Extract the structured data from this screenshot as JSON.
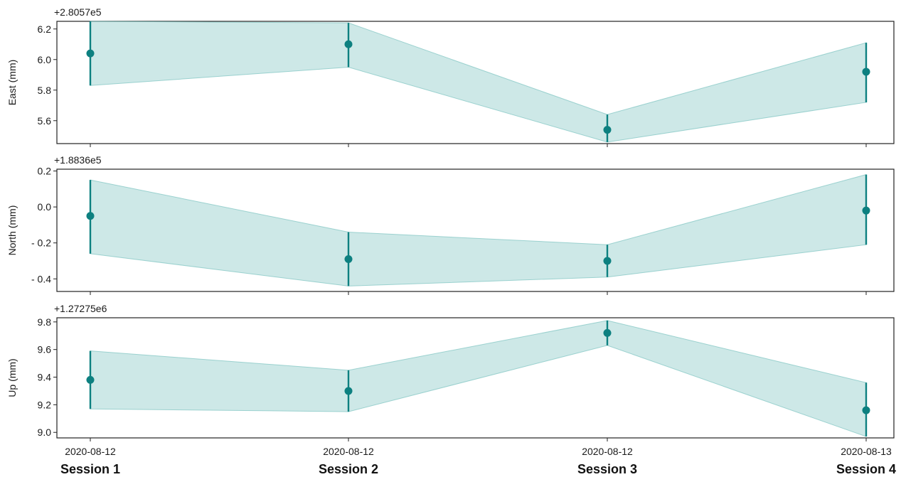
{
  "chart_data": {
    "type": "line",
    "x_dates": [
      "2020-08-12",
      "2020-08-12",
      "2020-08-12",
      "2020-08-13"
    ],
    "x_sessions": [
      "Session 1",
      "Session 2",
      "Session 3",
      "Session 4"
    ],
    "colors": {
      "series": "#0d8080",
      "band": "#7cc3c0"
    },
    "grid": false,
    "panels": [
      {
        "ylabel": "East (mm)",
        "offset": "+2.8057e5",
        "ylim": [
          5.45,
          6.25
        ],
        "yticks": [
          5.6,
          5.8,
          6.0,
          6.2
        ],
        "ytick_labels": [
          "5.6",
          "5.8",
          "6.0",
          "6.2"
        ],
        "values": [
          6.04,
          6.1,
          5.54,
          5.92
        ],
        "upper": [
          6.25,
          6.24,
          5.64,
          6.11
        ],
        "lower": [
          5.83,
          5.95,
          5.46,
          5.72
        ]
      },
      {
        "ylabel": "North (mm)",
        "offset": "+1.8836e5",
        "ylim": [
          -0.47,
          0.21
        ],
        "yticks": [
          -0.4,
          -0.2,
          0.0,
          0.2
        ],
        "ytick_labels": [
          "- 0.4",
          "- 0.2",
          "0.0",
          "0.2"
        ],
        "values": [
          -0.05,
          -0.29,
          -0.3,
          -0.02
        ],
        "upper": [
          0.15,
          -0.14,
          -0.21,
          0.18
        ],
        "lower": [
          -0.26,
          -0.44,
          -0.39,
          -0.21
        ]
      },
      {
        "ylabel": "Up (mm)",
        "offset": "+1.27275e6",
        "ylim": [
          8.96,
          9.83
        ],
        "yticks": [
          9.0,
          9.2,
          9.4,
          9.6,
          9.8
        ],
        "ytick_labels": [
          "9.0",
          "9.2",
          "9.4",
          "9.6",
          "9.8"
        ],
        "values": [
          9.38,
          9.3,
          9.72,
          9.16
        ],
        "upper": [
          9.59,
          9.45,
          9.81,
          9.36
        ],
        "lower": [
          9.17,
          9.15,
          9.63,
          8.97
        ]
      }
    ]
  }
}
